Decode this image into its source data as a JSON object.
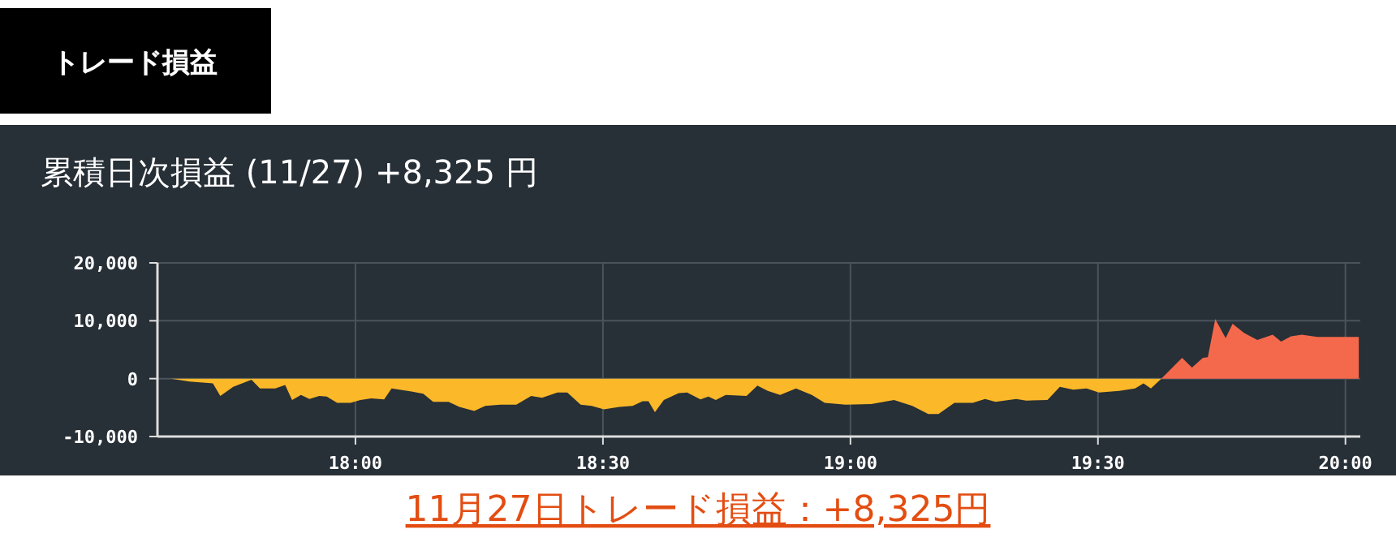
{
  "chart_data": {
    "type": "area",
    "title": "累積日次損益 (11/27) +8,325 円",
    "annotations": [
      "トレード損益",
      "11月27日トレード損益：+8,325円"
    ],
    "series": [
      {
        "type": "area",
        "color": "#fbb829",
        "x": [
          17.628,
          17.665,
          17.712,
          17.727,
          17.753,
          17.79,
          17.807,
          17.838,
          17.858,
          17.872,
          17.89,
          17.907,
          17.927,
          17.942,
          17.963,
          17.99,
          18.01,
          18.032,
          18.058,
          18.073,
          18.105,
          18.137,
          18.157,
          18.188,
          18.21,
          18.24,
          18.262,
          18.293,
          18.325,
          18.355,
          18.377,
          18.408,
          18.428,
          18.455,
          18.477,
          18.502,
          18.533,
          18.56,
          18.58,
          18.592,
          18.605,
          18.623,
          18.653,
          18.67,
          18.697,
          18.713,
          18.728,
          18.748,
          18.79,
          18.812,
          18.833,
          18.858,
          18.89,
          18.922,
          18.948,
          18.99,
          19.042,
          19.088,
          19.125,
          19.157,
          19.178,
          19.21,
          19.247,
          19.272,
          19.293,
          19.335,
          19.355,
          19.398,
          19.423,
          19.45,
          19.477,
          19.502,
          19.543,
          19.575,
          19.592,
          19.607,
          19.628
        ],
        "values": [
          0,
          -500,
          -800,
          -3000,
          -1400,
          -200,
          -1700,
          -1700,
          -1100,
          -3700,
          -2800,
          -3500,
          -3000,
          -3100,
          -4200,
          -4200,
          -3700,
          -3400,
          -3600,
          -1700,
          -2100,
          -2600,
          -4000,
          -4000,
          -4900,
          -5600,
          -4700,
          -4500,
          -4500,
          -3000,
          -3300,
          -2400,
          -2400,
          -4500,
          -4700,
          -5300,
          -4900,
          -4700,
          -3900,
          -3900,
          -5800,
          -3700,
          -2500,
          -2400,
          -3600,
          -3100,
          -3700,
          -2800,
          -3000,
          -1200,
          -2100,
          -2800,
          -1700,
          -2800,
          -4200,
          -4500,
          -4400,
          -3700,
          -4700,
          -6100,
          -6100,
          -4200,
          -4200,
          -3500,
          -4000,
          -3500,
          -3800,
          -3700,
          -1400,
          -1900,
          -1700,
          -2400,
          -2100,
          -1700,
          -800,
          -1700,
          0
        ]
      },
      {
        "type": "area",
        "color": "#f4694b",
        "x": [
          19.628,
          19.67,
          19.69,
          19.712,
          19.722,
          19.737,
          19.758,
          19.772,
          19.795,
          19.822,
          19.853,
          19.87,
          19.89,
          19.912,
          19.943,
          20.027
        ],
        "values": [
          0,
          3600,
          1900,
          3600,
          3700,
          10300,
          7000,
          9500,
          7900,
          6700,
          7600,
          6400,
          7300,
          7600,
          7200,
          7200
        ]
      }
    ],
    "xlim": [
      17.6,
      20.03
    ],
    "xticks": [
      {
        "value": 18,
        "label": "18:00"
      },
      {
        "value": 18.5,
        "label": "18:30"
      },
      {
        "value": 19,
        "label": "19:00"
      },
      {
        "value": 19.5,
        "label": "19:30"
      },
      {
        "value": 20,
        "label": "20:00"
      }
    ],
    "ylim": [
      -10000,
      20000
    ],
    "yticks": [
      {
        "value": -10000,
        "label": "-10,000"
      },
      {
        "value": 0,
        "label": "0"
      },
      {
        "value": 10000,
        "label": "10,000"
      },
      {
        "value": 20000,
        "label": "20,000"
      }
    ],
    "grid": true
  }
}
